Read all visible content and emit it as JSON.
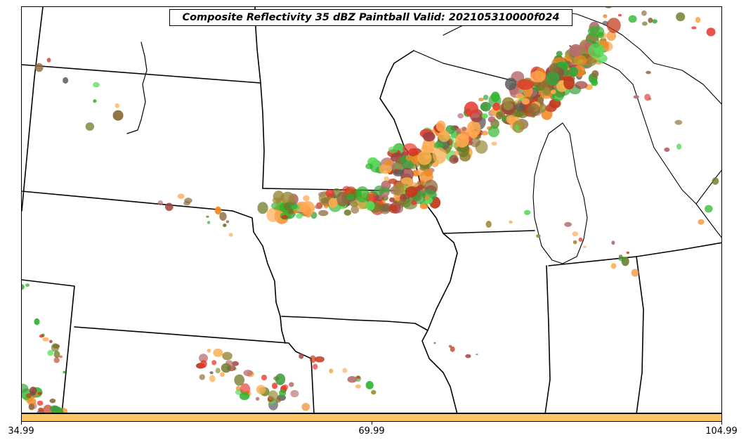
{
  "title": "Composite Reflectivity 35 dBZ Paintball Valid: 202105310000f024",
  "colorbar": {
    "color": "#ffc464",
    "ticks": [
      "34.99",
      "69.99",
      "104.99"
    ]
  },
  "paintball_colors": [
    "#e8382e",
    "#f08a24",
    "#f7ad4d",
    "#ffa94f",
    "#c23a1a",
    "#9a8a3a",
    "#8c6b3a",
    "#a04040",
    "#5a5a5a",
    "#2db52d",
    "#55dd55",
    "#3aa03a",
    "#b87070",
    "#707a28"
  ]
}
